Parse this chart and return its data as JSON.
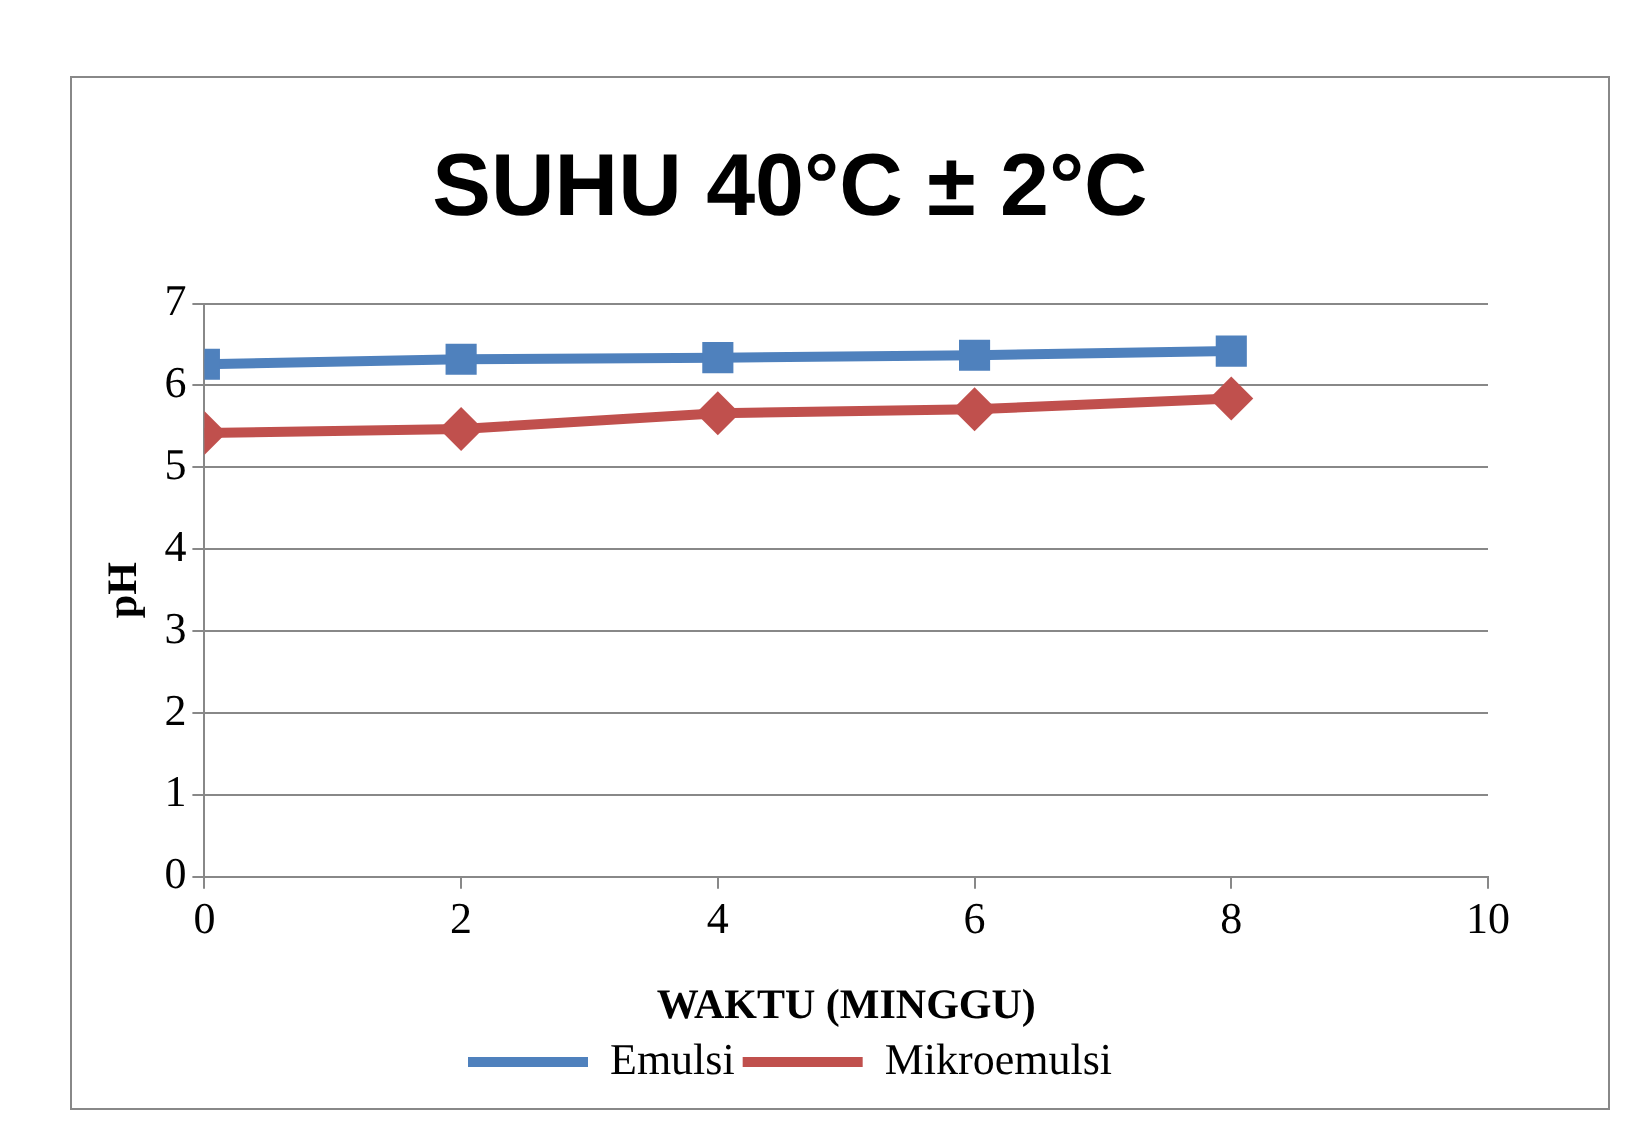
{
  "chart_data": {
    "type": "line",
    "title": "SUHU 40°C ± 2°C",
    "xlabel": "WAKTU (MINGGU)",
    "ylabel": "pH",
    "x": [
      0,
      2,
      4,
      6,
      8
    ],
    "xlim": [
      0,
      10
    ],
    "xticks": [
      0,
      2,
      4,
      6,
      8,
      10
    ],
    "ylim": [
      0,
      7
    ],
    "yticks": [
      0,
      1,
      2,
      3,
      4,
      5,
      6,
      7
    ],
    "grid": "y",
    "legend": "bottom",
    "series": [
      {
        "name": "Emulsi",
        "color": "#4f81bd",
        "values": [
          6.26,
          6.32,
          6.34,
          6.37,
          6.42
        ],
        "marker": "square"
      },
      {
        "name": "Mikroemulsi",
        "color": "#c0504d",
        "values": [
          5.42,
          5.47,
          5.66,
          5.71,
          5.84
        ],
        "marker": "diamond"
      }
    ]
  }
}
